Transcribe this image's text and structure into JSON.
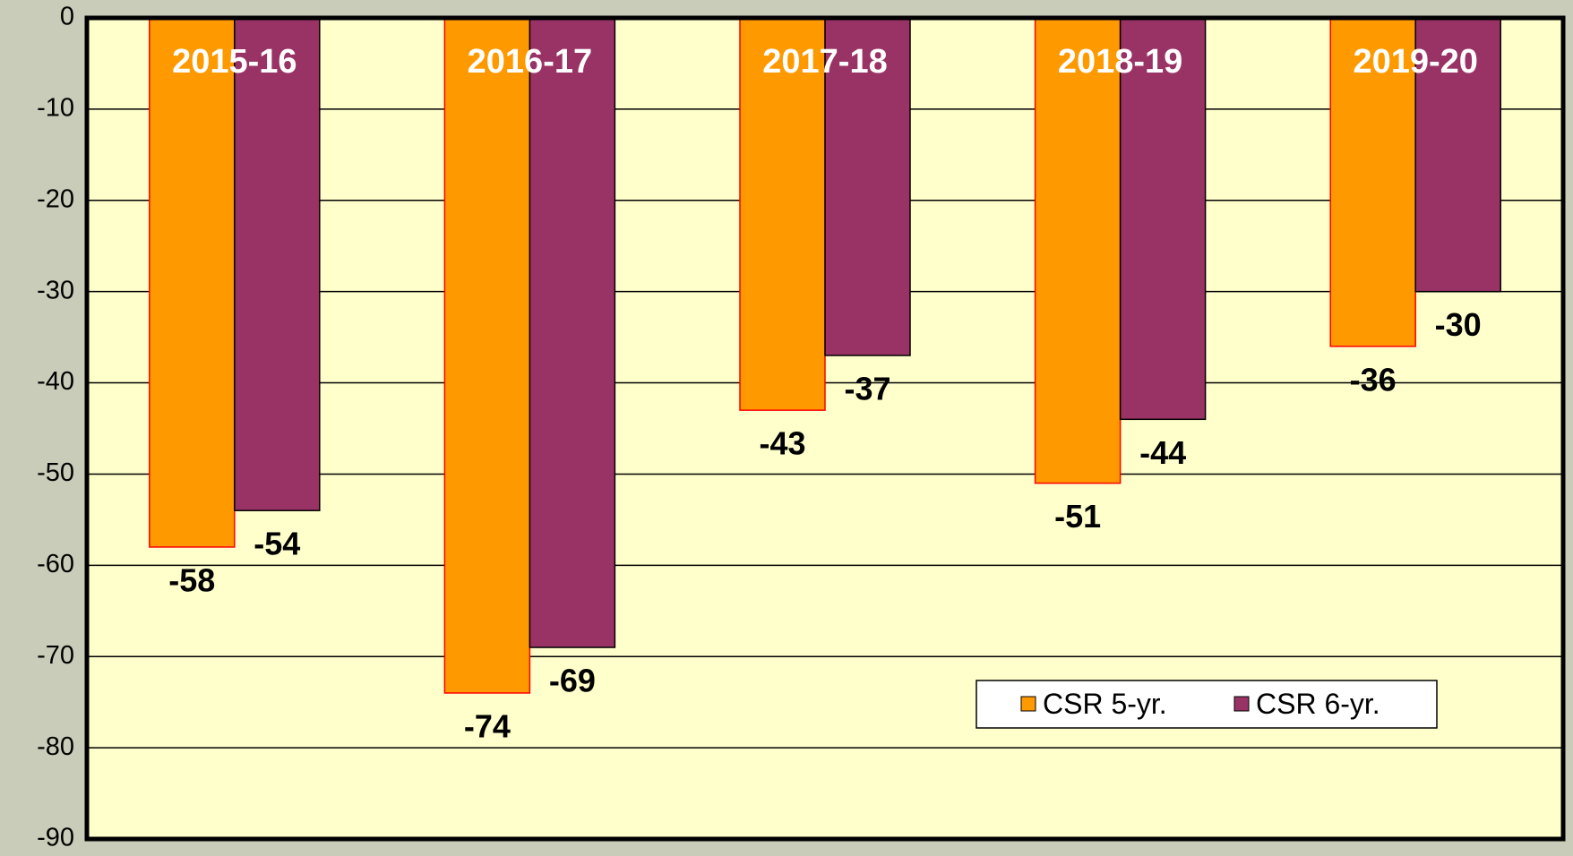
{
  "chart_data": {
    "type": "bar",
    "categories": [
      "2015-16",
      "2016-17",
      "2017-18",
      "2018-19",
      "2019-20"
    ],
    "series": [
      {
        "name": "CSR 5-yr.",
        "color": "#ff9900",
        "values": [
          -58,
          -74,
          -43,
          -51,
          -36
        ]
      },
      {
        "name": "CSR 6-yr.",
        "color": "#993366",
        "values": [
          -54,
          -69,
          -37,
          -44,
          -30
        ]
      }
    ],
    "ylim": [
      -90,
      0
    ],
    "yticks": [
      0,
      -10,
      -20,
      -30,
      -40,
      -50,
      -60,
      -70,
      -80,
      -90
    ],
    "grid": true,
    "legend": "lower right"
  }
}
